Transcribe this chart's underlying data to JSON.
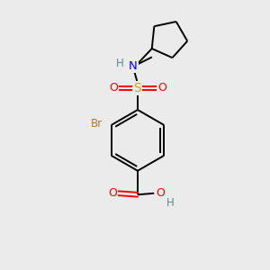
{
  "bg_color": "#ebebeb",
  "atom_colors": {
    "C": "#000000",
    "H": "#5c8a8a",
    "N": "#0000ff",
    "O": "#ff0000",
    "S": "#ccaa00",
    "Br": "#b87333"
  },
  "bond_color": "#000000",
  "figsize": [
    3.0,
    3.0
  ],
  "dpi": 100
}
